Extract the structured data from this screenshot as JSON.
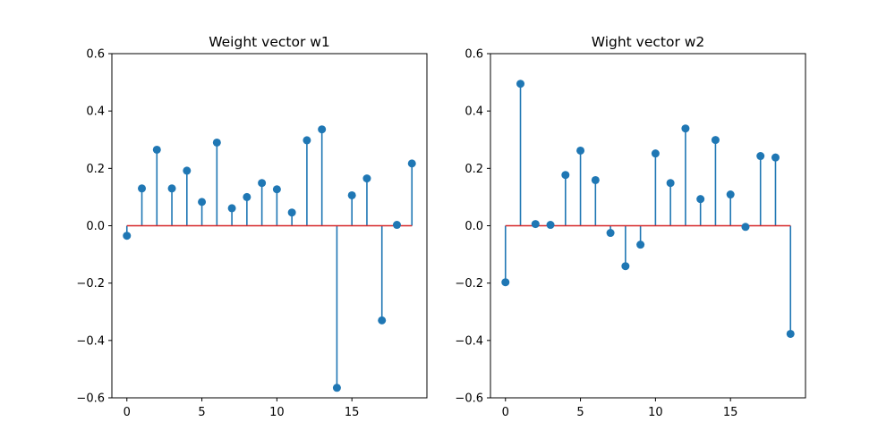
{
  "chart_data": [
    {
      "type": "stem",
      "title": "Weight vector w1",
      "xlabel": "",
      "ylabel": "",
      "x": [
        0,
        1,
        2,
        3,
        4,
        5,
        6,
        7,
        8,
        9,
        10,
        11,
        12,
        13,
        14,
        15,
        16,
        17,
        18,
        19
      ],
      "values": [
        -0.035,
        0.13,
        0.265,
        0.13,
        0.192,
        0.083,
        0.29,
        0.061,
        0.1,
        0.149,
        0.127,
        0.046,
        0.298,
        0.336,
        -0.565,
        0.106,
        0.165,
        -0.33,
        0.003,
        0.217
      ],
      "xlim": [
        -1,
        20
      ],
      "ylim": [
        -0.6,
        0.6
      ],
      "xticks": [
        0,
        5,
        10,
        15
      ],
      "xtick_labels": [
        "0",
        "5",
        "10",
        "15"
      ],
      "yticks": [
        -0.6,
        -0.4,
        -0.2,
        0.0,
        0.2,
        0.4,
        0.6
      ],
      "ytick_labels": [
        "−0.6",
        "−0.4",
        "−0.2",
        "0.0",
        "0.2",
        "0.4",
        "0.6"
      ],
      "grid": false,
      "colors": {
        "stem": "#1f77b4",
        "marker": "#1f77b4",
        "baseline": "#d62728"
      }
    },
    {
      "type": "stem",
      "title": "Wight vector w2",
      "xlabel": "",
      "ylabel": "",
      "x": [
        0,
        1,
        2,
        3,
        4,
        5,
        6,
        7,
        8,
        9,
        10,
        11,
        12,
        13,
        14,
        15,
        16,
        17,
        18,
        19
      ],
      "values": [
        -0.197,
        0.495,
        0.006,
        0.003,
        0.177,
        0.262,
        0.159,
        -0.025,
        -0.141,
        -0.066,
        0.252,
        0.149,
        0.339,
        0.093,
        0.299,
        0.109,
        -0.004,
        0.243,
        0.238,
        -0.377
      ],
      "xlim": [
        -1,
        20
      ],
      "ylim": [
        -0.6,
        0.6
      ],
      "xticks": [
        0,
        5,
        10,
        15
      ],
      "xtick_labels": [
        "0",
        "5",
        "10",
        "15"
      ],
      "yticks": [
        -0.6,
        -0.4,
        -0.2,
        0.0,
        0.2,
        0.4,
        0.6
      ],
      "ytick_labels": [
        "−0.6",
        "−0.4",
        "−0.2",
        "0.0",
        "0.2",
        "0.4",
        "0.6"
      ],
      "grid": false,
      "colors": {
        "stem": "#1f77b4",
        "marker": "#1f77b4",
        "baseline": "#d62728"
      }
    }
  ]
}
